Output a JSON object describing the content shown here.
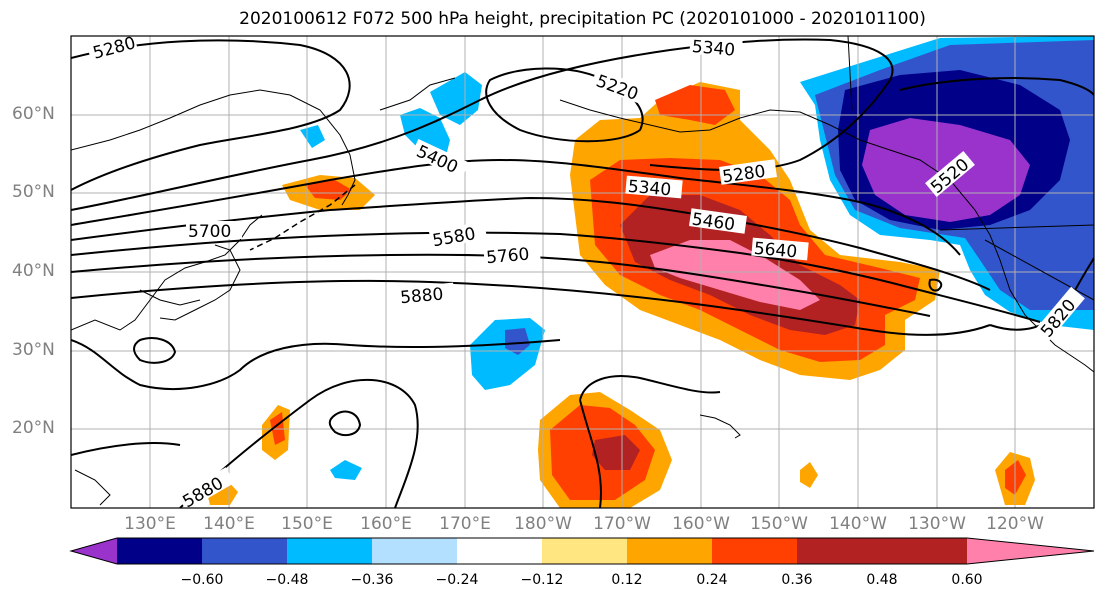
{
  "title": "2020100612 F072 500 hPa height, precipitation PC (2020101000 - 2020101100)",
  "lat_labels": [
    "60°N",
    "50°N",
    "40°N",
    "30°N",
    "20°N"
  ],
  "lon_labels": [
    "130°E",
    "140°E",
    "150°E",
    "160°E",
    "170°E",
    "180°W",
    "170°W",
    "160°W",
    "150°W",
    "140°W",
    "130°W",
    "120°W"
  ],
  "contour_labels": [
    "5280",
    "5340",
    "5220",
    "5400",
    "5340",
    "5280",
    "5460",
    "5580",
    "5640",
    "5700",
    "5760",
    "5880",
    "5880",
    "5520",
    "5820"
  ],
  "colorbar": {
    "colors": [
      "#9933cc",
      "#000088",
      "#3355cc",
      "#00bbff",
      "#b3e0ff",
      "#ffffff",
      "#ffe680",
      "#ffa500",
      "#ff4000",
      "#b22222",
      "#ff80aa"
    ],
    "ticks": [
      "−0.60",
      "−0.48",
      "−0.36",
      "−0.24",
      "−0.12",
      "0.12",
      "0.24",
      "0.36",
      "0.48",
      "0.60"
    ]
  }
}
